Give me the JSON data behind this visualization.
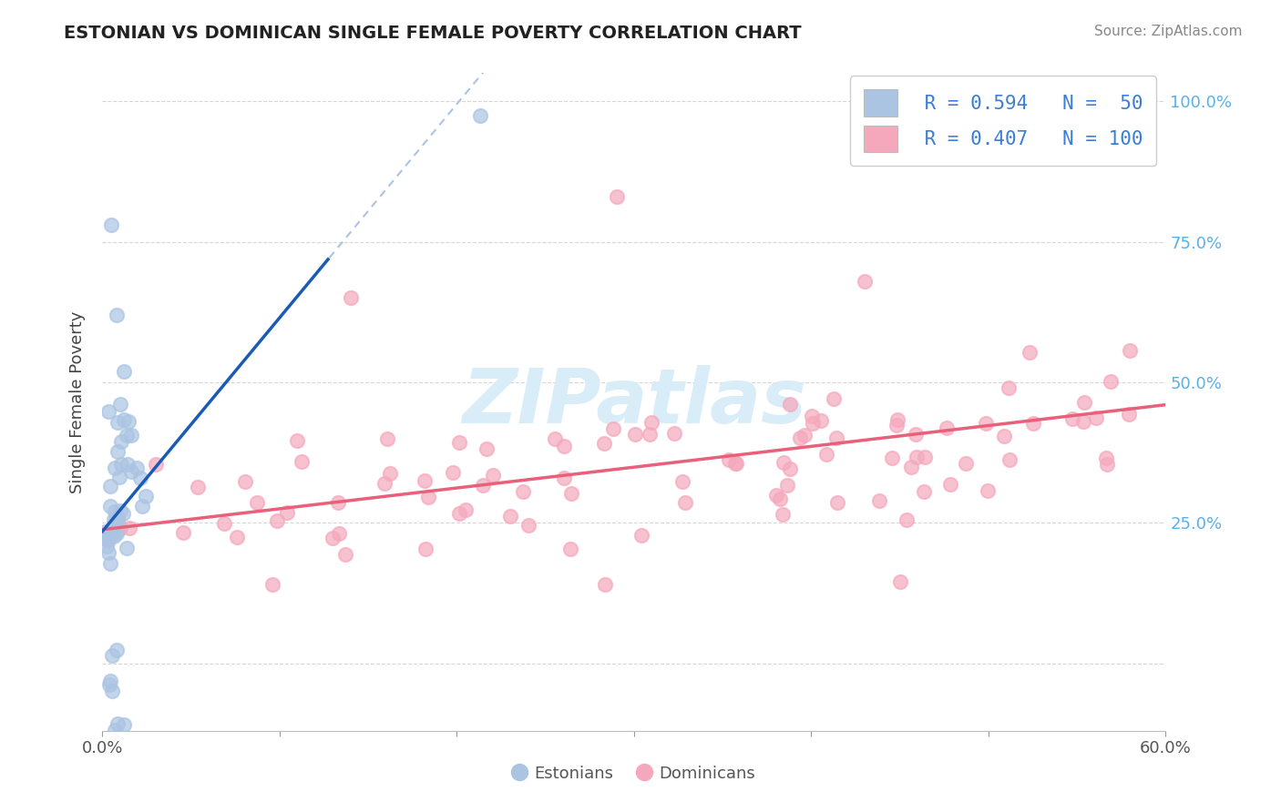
{
  "title": "ESTONIAN VS DOMINICAN SINGLE FEMALE POVERTY CORRELATION CHART",
  "source": "Source: ZipAtlas.com",
  "ylabel": "Single Female Poverty",
  "x_range": [
    0.0,
    0.6
  ],
  "y_range": [
    -0.12,
    1.05
  ],
  "estonian_R": 0.594,
  "estonian_N": 50,
  "dominican_R": 0.407,
  "dominican_N": 100,
  "estonian_color": "#aac4e2",
  "dominican_color": "#f5a8bc",
  "estonian_line_color": "#1a5cb5",
  "dominican_line_color": "#e8607a",
  "legend_r_color": "#3a7fd5",
  "watermark_color": "#d8edf8",
  "grid_color": "#cccccc",
  "right_tick_color": "#5ab0e8",
  "y_tick_vals": [
    0.0,
    0.25,
    0.5,
    0.75,
    1.0
  ],
  "y_tick_labels": [
    "",
    "25.0%",
    "50.0%",
    "75.0%",
    "100.0%"
  ],
  "est_line_intercept": 0.235,
  "est_line_slope": 3.8,
  "dom_line_intercept": 0.238,
  "dom_line_slope": 0.37
}
